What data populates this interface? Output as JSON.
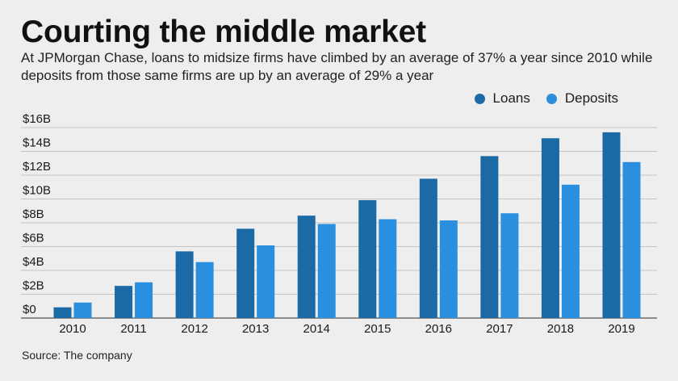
{
  "header": {
    "title": "Courting the middle market",
    "subtitle": "At JPMorgan Chase, loans to midsize firms have climbed by an average of 37% a year since 2010 while deposits from those same firms are up by an average of 29% a year"
  },
  "legend": {
    "loans_label": "Loans",
    "deposits_label": "Deposits",
    "loans_color": "#1b6aa5",
    "deposits_color": "#2a8fde"
  },
  "footer": {
    "source": "Source: The company"
  },
  "chart_data": {
    "type": "bar",
    "categories": [
      "2010",
      "2011",
      "2012",
      "2013",
      "2014",
      "2015",
      "2016",
      "2017",
      "2018",
      "2019"
    ],
    "series": [
      {
        "name": "Loans",
        "color": "#1b6aa5",
        "values": [
          0.9,
          2.7,
          5.6,
          7.5,
          8.6,
          9.9,
          11.7,
          13.6,
          15.1,
          15.6
        ]
      },
      {
        "name": "Deposits",
        "color": "#2a8fde",
        "values": [
          1.3,
          3.0,
          4.7,
          6.1,
          7.9,
          8.3,
          8.2,
          8.8,
          11.2,
          13.1
        ]
      }
    ],
    "y_ticks": [
      "$0",
      "$2B",
      "$4B",
      "$6B",
      "$8B",
      "$10B",
      "$12B",
      "$14B",
      "$16B"
    ],
    "y_tick_values": [
      0,
      2,
      4,
      6,
      8,
      10,
      12,
      14,
      16
    ],
    "ylim": [
      0,
      16
    ],
    "grid": true,
    "legend_position": "top-right"
  }
}
